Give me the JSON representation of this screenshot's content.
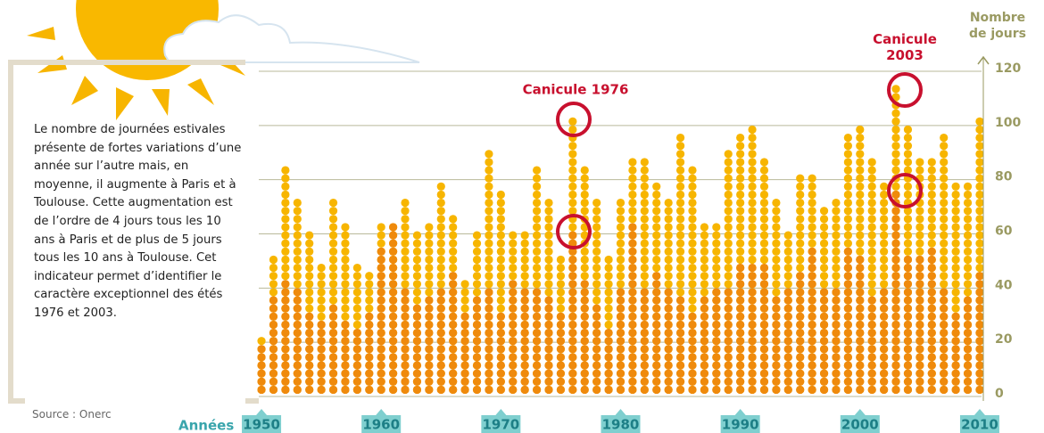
{
  "chart_data": {
    "type": "dot-column",
    "description": "Le nombre de journées estivales présente de fortes variations d’une année sur l’autre mais, en moyenne, il augmente à Paris et à Toulouse. Cette augmentation est de l’ordre de 4 jours tous les 10 ans à Paris et de plus de 5 jours tous les 10 ans à Toulouse. Cet indicateur permet d’identifier le caractère exceptionnel des étés 1976 et 2003.",
    "source": "Source : Onerc",
    "y_label": "Nombre de jours",
    "x_label": "Années",
    "annotations": [
      "Canicule 1976",
      "Canicule 2003"
    ],
    "x": [
      1950,
      1951,
      1952,
      1953,
      1954,
      1955,
      1956,
      1957,
      1958,
      1959,
      1960,
      1961,
      1962,
      1963,
      1964,
      1965,
      1966,
      1967,
      1968,
      1969,
      1970,
      1971,
      1972,
      1973,
      1974,
      1975,
      1976,
      1977,
      1978,
      1979,
      1980,
      1981,
      1982,
      1983,
      1984,
      1985,
      1986,
      1987,
      1988,
      1989,
      1990,
      1991,
      1992,
      1993,
      1994,
      1995,
      1996,
      1997,
      1998,
      1999,
      2000,
      2001,
      2002,
      2003,
      2004,
      2005,
      2006,
      2007,
      2008,
      2009,
      2010
    ],
    "series": [
      {
        "color": "#f7b500",
        "values": [
          21,
          52,
          84,
          73,
          59,
          47,
          73,
          64,
          47,
          44,
          62,
          64,
          73,
          59,
          64,
          79,
          67,
          41,
          59,
          90,
          76,
          59,
          59,
          84,
          73,
          50,
          102,
          84,
          73,
          52,
          73,
          87,
          87,
          79,
          73,
          96,
          84,
          64,
          62,
          90,
          96,
          99,
          87,
          73,
          59,
          81,
          81,
          70,
          73,
          96,
          99,
          87,
          78,
          113,
          99,
          87,
          87,
          96,
          79,
          79,
          102
        ]
      },
      {
        "color": "#ef8a0c",
        "values": [
          18,
          35,
          42,
          40,
          30,
          28,
          33,
          28,
          25,
          30,
          55,
          64,
          40,
          32,
          35,
          40,
          45,
          30,
          35,
          40,
          30,
          42,
          38,
          40,
          35,
          30,
          60,
          42,
          32,
          24,
          38,
          62,
          38,
          45,
          38,
          35,
          30,
          35,
          40,
          38,
          48,
          48,
          48,
          35,
          40,
          45,
          55,
          40,
          38,
          55,
          50,
          35,
          40,
          75,
          50,
          52,
          55,
          38,
          30,
          35,
          45
        ]
      }
    ],
    "xlim": [
      1949.4,
      2010.6
    ],
    "xticks": [
      1950,
      1960,
      1970,
      1980,
      1990,
      2000,
      2010
    ],
    "ylim": [
      0,
      120
    ],
    "yticks": [
      0,
      20,
      40,
      60,
      80,
      100,
      120
    ],
    "grid": true
  }
}
